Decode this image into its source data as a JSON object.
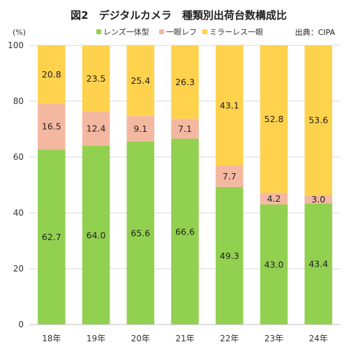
{
  "chart_data": {
    "type": "bar",
    "stacked": true,
    "title": "図2　デジタルカメラ　種類別出荷台数構成比",
    "source": "出典：CIPA",
    "ylabel": "(%)",
    "ylim": [
      0,
      100
    ],
    "yticks": [
      0,
      20,
      40,
      60,
      80,
      100
    ],
    "legend_position": "top",
    "categories": [
      "18年",
      "19年",
      "20年",
      "21年",
      "22年",
      "23年",
      "24年"
    ],
    "series": [
      {
        "name": "レンズ一体型",
        "color": "#92d050",
        "labels": [
          "62.7",
          "64.0",
          "65.6",
          "66.6",
          "49.3",
          "43.0",
          "43.4"
        ],
        "values": [
          62.7,
          64.0,
          65.6,
          66.6,
          49.3,
          43.0,
          43.4
        ]
      },
      {
        "name": "一眼レフ",
        "color": "#f4b8a0",
        "labels": [
          "16.5",
          "12.4",
          "9.1",
          "7.1",
          "7.7",
          "4.2",
          "3.0"
        ],
        "values": [
          16.5,
          12.4,
          9.1,
          7.1,
          7.7,
          4.2,
          3.0
        ]
      },
      {
        "name": "ミラーレス一眼",
        "color": "#ffd24d",
        "labels": [
          "20.8",
          "23.5",
          "25.4",
          "26.3",
          "43.1",
          "52.8",
          "53.6"
        ],
        "values": [
          20.8,
          23.5,
          25.4,
          26.3,
          43.1,
          52.8,
          53.6
        ]
      }
    ]
  }
}
